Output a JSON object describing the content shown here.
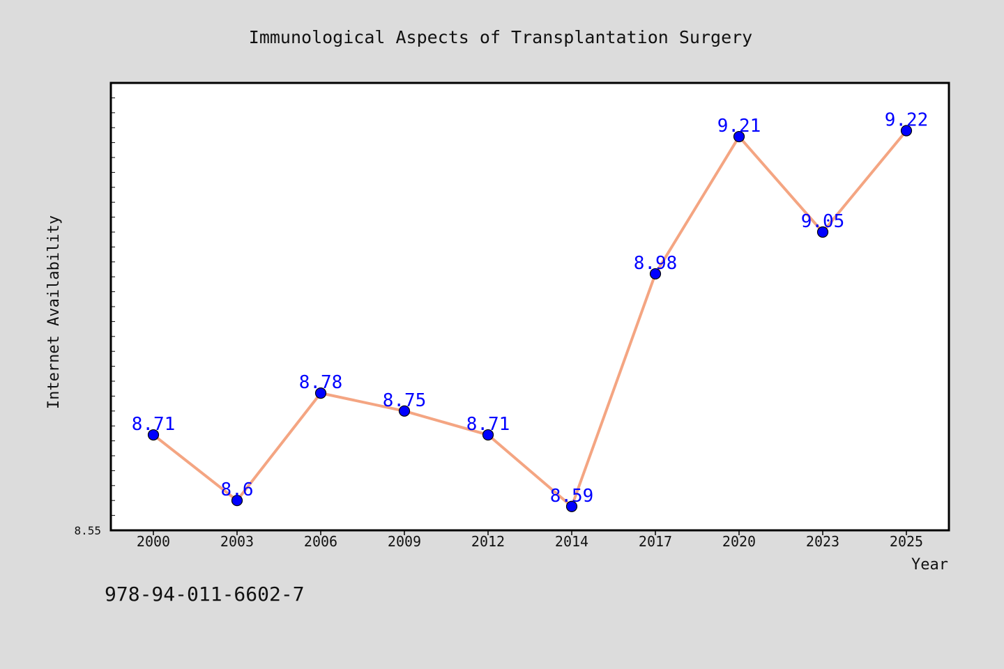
{
  "footer_text": "978-94-011-6602-7",
  "colors": {
    "background": "#dcdcdc",
    "plot_background": "#ffffff",
    "line": "#f4a582",
    "marker_fill": "#0000ff",
    "marker_edge": "#000000",
    "data_label": "#0000ff"
  },
  "chart_data": {
    "type": "line",
    "title": "Immunological Aspects of Transplantation Surgery",
    "xlabel": "Year",
    "ylabel": "Internet Availability",
    "categories": [
      "2000",
      "2003",
      "2006",
      "2009",
      "2012",
      "2014",
      "2017",
      "2020",
      "2023",
      "2025"
    ],
    "series": [
      {
        "values": [
          8.71,
          8.6,
          8.78,
          8.75,
          8.71,
          8.59,
          8.98,
          9.21,
          9.05,
          9.22
        ],
        "labels": [
          "8.71",
          "8.6",
          "8.78",
          "8.75",
          "8.71",
          "8.59",
          "8.98",
          "9.21",
          "9.05",
          "9.22"
        ]
      }
    ],
    "ylim": [
      8.55,
      9.3
    ],
    "ytick_labels": [
      "8.55"
    ],
    "grid": false,
    "legend": "none"
  }
}
